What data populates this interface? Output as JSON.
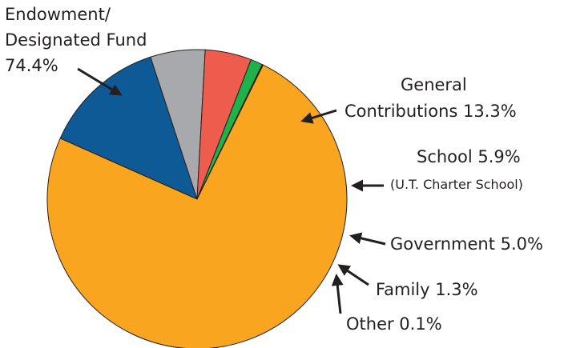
{
  "chart_data": {
    "type": "pie",
    "title": "",
    "slices": [
      {
        "key": "general",
        "label": "General Contributions",
        "value": 13.3,
        "color": "#0e5a97"
      },
      {
        "key": "school",
        "label": "School",
        "value": 5.9,
        "color": "#a7a9ac"
      },
      {
        "key": "government",
        "label": "Government",
        "value": 5.0,
        "color": "#ee5c4d"
      },
      {
        "key": "family",
        "label": "Family",
        "value": 1.3,
        "color": "#1fb24a"
      },
      {
        "key": "other",
        "label": "Other",
        "value": 0.1,
        "color": "#231f20"
      },
      {
        "key": "endowment",
        "label": "Endowment/ Designated Fund",
        "value": 74.4,
        "color": "#f9a51f"
      }
    ]
  },
  "labels": {
    "endowment_line1": "Endowment/",
    "endowment_line2": "Designated Fund",
    "endowment_line3": "74.4%",
    "general_line1": "General",
    "general_line2": "Contributions 13.3%",
    "school_line1": "School  5.9%",
    "school_line2": "(U.T. Charter School)",
    "government": "Government 5.0%",
    "family": "Family 1.3%",
    "other": "Other 0.1%"
  }
}
